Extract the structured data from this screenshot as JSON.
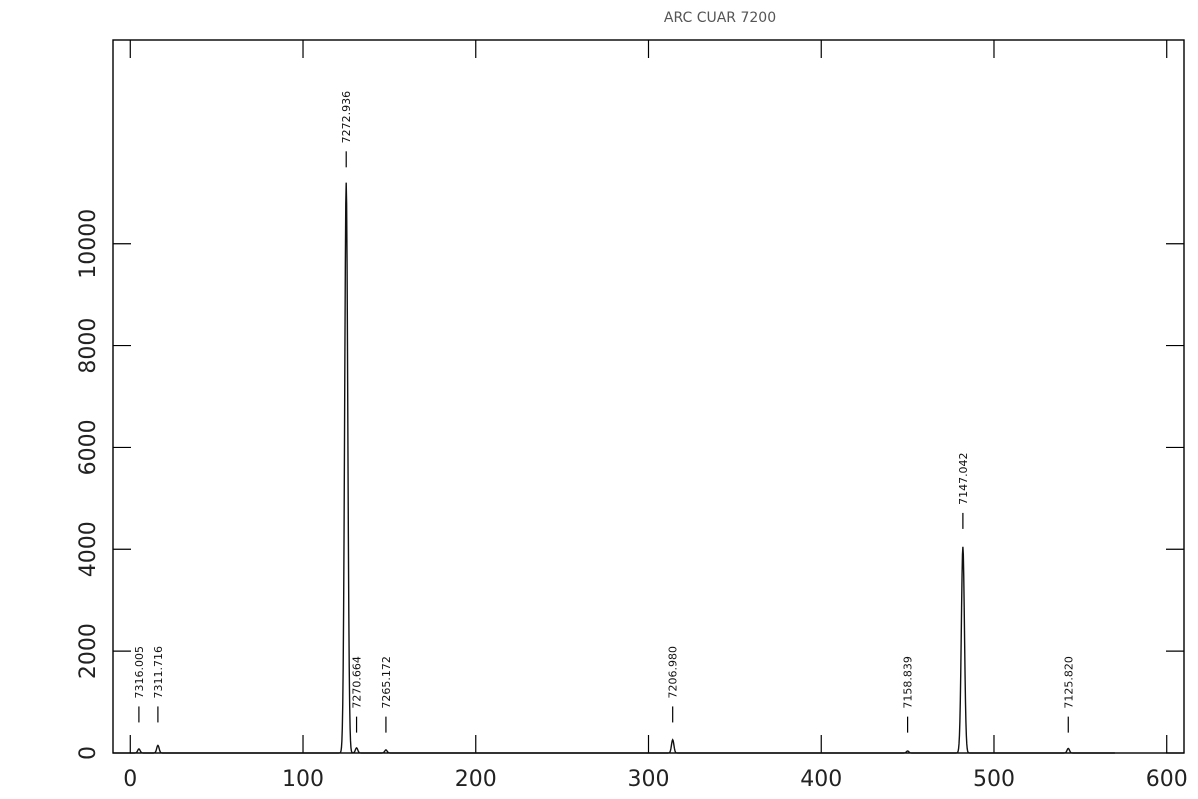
{
  "chart_data": {
    "type": "line",
    "title": "ARC  CUAR  7200",
    "xlabel": "",
    "ylabel": "",
    "xlim": [
      -10,
      610
    ],
    "ylim": [
      0,
      14000
    ],
    "x_ticks": [
      0,
      100,
      200,
      300,
      400,
      500,
      600
    ],
    "y_ticks": [
      0,
      2000,
      4000,
      6000,
      8000,
      10000
    ],
    "grid": false,
    "line_color": "#111111",
    "series": [
      {
        "peaks": [
          {
            "x": 5,
            "height": 80
          },
          {
            "x": 16,
            "height": 150
          },
          {
            "x": 125,
            "height": 11200
          },
          {
            "x": 131,
            "height": 100
          },
          {
            "x": 148,
            "height": 60
          },
          {
            "x": 314,
            "height": 260
          },
          {
            "x": 450,
            "height": 40
          },
          {
            "x": 482,
            "height": 4050
          },
          {
            "x": 543,
            "height": 90
          }
        ]
      }
    ],
    "line_labels": [
      {
        "text": "7316.005",
        "x": 5,
        "marker_y": 600
      },
      {
        "text": "7311.716",
        "x": 16,
        "marker_y": 600
      },
      {
        "text": "7272.936",
        "x": 125,
        "marker_y": 11500
      },
      {
        "text": "7270.664",
        "x": 131,
        "marker_y": 400
      },
      {
        "text": "7265.172",
        "x": 148,
        "marker_y": 400
      },
      {
        "text": "7206.980",
        "x": 314,
        "marker_y": 600
      },
      {
        "text": "7158.839",
        "x": 450,
        "marker_y": 400
      },
      {
        "text": "7147.042",
        "x": 482,
        "marker_y": 4400
      },
      {
        "text": "7125.820",
        "x": 543,
        "marker_y": 400
      }
    ]
  }
}
